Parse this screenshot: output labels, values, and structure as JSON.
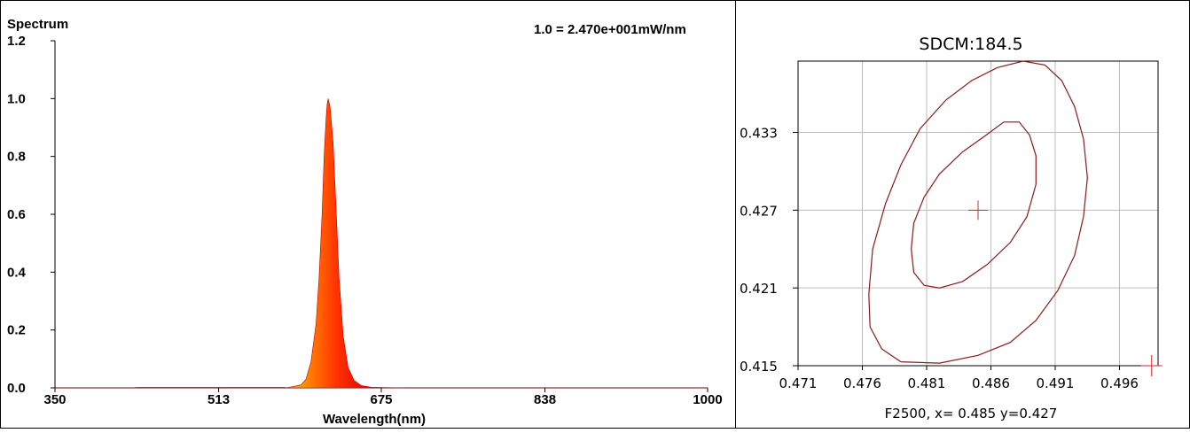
{
  "spectrum_panel": {
    "title": "Spectrum",
    "scale_note": "1.0  = 2.470e+001mW/nm",
    "xlabel": "Wavelength(nm)"
  },
  "sdcm_panel": {
    "title": "SDCM:184.5",
    "footer": "F2500, x= 0.485 y=0.427"
  },
  "chart_data": [
    {
      "type": "area",
      "title": "Spectrum",
      "xlabel": "Wavelength(nm)",
      "ylabel": "",
      "xlim": [
        350,
        1000
      ],
      "ylim": [
        0,
        1.2
      ],
      "x_ticks": [
        "350",
        "513",
        "675",
        "838",
        "1000"
      ],
      "y_ticks": [
        "0.0",
        "0.2",
        "0.4",
        "0.6",
        "0.8",
        "1.0",
        "1.2"
      ],
      "x_tick_values": [
        350,
        513,
        675,
        838,
        1000
      ],
      "y_tick_values": [
        0,
        0.2,
        0.4,
        0.6,
        0.8,
        1.0,
        1.2
      ],
      "grid": false,
      "series": [
        {
          "x": [
            350,
            580,
            595,
            600,
            605,
            610,
            613,
            616,
            618,
            620,
            621,
            622,
            624,
            627,
            630,
            633,
            637,
            642,
            648,
            655,
            665,
            700,
            1000
          ],
          "values": [
            0,
            0,
            0.01,
            0.03,
            0.09,
            0.22,
            0.38,
            0.6,
            0.8,
            0.93,
            0.98,
            1.0,
            0.97,
            0.85,
            0.62,
            0.38,
            0.18,
            0.07,
            0.025,
            0.008,
            0.002,
            0,
            0
          ]
        }
      ],
      "fill_colors": [
        "#ff9900",
        "#ff3300",
        "#dd0000"
      ]
    },
    {
      "type": "line",
      "title": "SDCM:184.5",
      "xlabel": "F2500, x= 0.485 y=0.427",
      "xlim": [
        0.471,
        0.499
      ],
      "ylim": [
        0.415,
        0.4385
      ],
      "x_ticks": [
        "0.471",
        "0.476",
        "0.481",
        "0.486",
        "0.491",
        "0.496"
      ],
      "y_ticks": [
        "0.415",
        "0.421",
        "0.427",
        "0.433"
      ],
      "x_tick_values": [
        0.471,
        0.476,
        0.481,
        0.486,
        0.491,
        0.496
      ],
      "y_tick_values": [
        0.415,
        0.421,
        0.427,
        0.433
      ],
      "grid": true,
      "line_color": "#8b1a1a",
      "center_point": {
        "x": 0.485,
        "y": 0.427
      },
      "outside_point": {
        "x": 0.4985,
        "y": 0.415
      },
      "series": [
        {
          "x": [
            0.4805,
            0.4825,
            0.4845,
            0.4865,
            0.4885,
            0.4902,
            0.4915,
            0.4925,
            0.4932,
            0.4935,
            0.4932,
            0.4925,
            0.4912,
            0.4895,
            0.4875,
            0.485,
            0.482,
            0.479,
            0.4775,
            0.4766,
            0.4765,
            0.4768,
            0.4778,
            0.479
          ],
          "y": [
            0.4333,
            0.4355,
            0.437,
            0.438,
            0.4385,
            0.4382,
            0.437,
            0.435,
            0.4325,
            0.4295,
            0.4265,
            0.4235,
            0.4208,
            0.4185,
            0.4168,
            0.4158,
            0.4152,
            0.4153,
            0.4163,
            0.418,
            0.4205,
            0.424,
            0.4275,
            0.4305
          ]
        },
        {
          "x": [
            0.4838,
            0.4855,
            0.487,
            0.4882,
            0.489,
            0.4895,
            0.4895,
            0.4888,
            0.4875,
            0.4857,
            0.4838,
            0.482,
            0.4808,
            0.48,
            0.4798,
            0.48,
            0.4808,
            0.482
          ],
          "y": [
            0.4315,
            0.4327,
            0.4338,
            0.4338,
            0.4328,
            0.4312,
            0.429,
            0.4265,
            0.4245,
            0.4228,
            0.4215,
            0.421,
            0.4212,
            0.4222,
            0.424,
            0.426,
            0.428,
            0.4298
          ]
        }
      ]
    }
  ]
}
